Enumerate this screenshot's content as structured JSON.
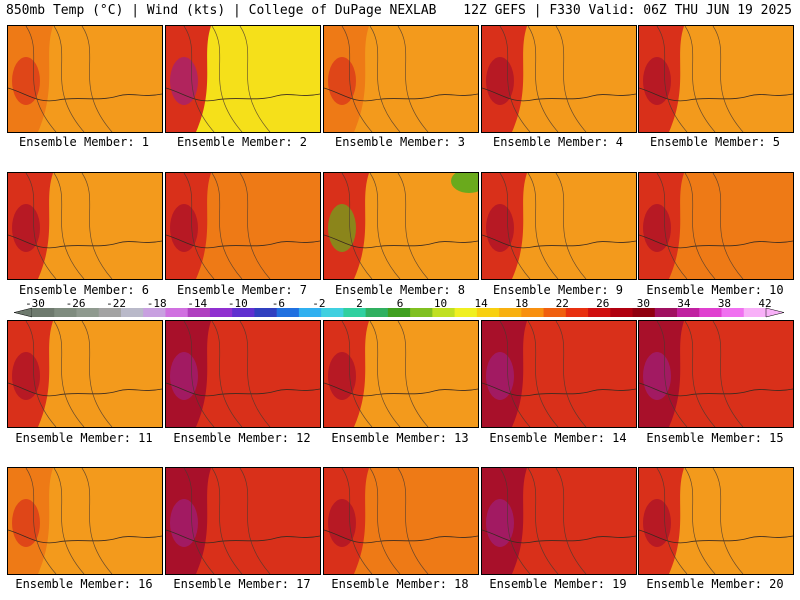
{
  "header": {
    "left": "850mb Temp (°C) | Wind (kts) | College of DuPage NEXLAB",
    "right": "12Z GEFS | F330 Valid: 06Z THU JUN 19 2025"
  },
  "members": [
    {
      "label": "Ensemble Member: 1",
      "palette": "mild"
    },
    {
      "label": "Ensemble Member: 2",
      "palette": "hot-west-yellow-east"
    },
    {
      "label": "Ensemble Member: 3",
      "palette": "mild"
    },
    {
      "label": "Ensemble Member: 4",
      "palette": "hot-west"
    },
    {
      "label": "Ensemble Member: 5",
      "palette": "hot-west"
    },
    {
      "label": "Ensemble Member: 6",
      "palette": "hot-west"
    },
    {
      "label": "Ensemble Member: 7",
      "palette": "warm"
    },
    {
      "label": "Ensemble Member: 8",
      "palette": "green-northeast"
    },
    {
      "label": "Ensemble Member: 9",
      "palette": "hot-west"
    },
    {
      "label": "Ensemble Member: 10",
      "palette": "warm"
    },
    {
      "label": "Ensemble Member: 11",
      "palette": "hot-west"
    },
    {
      "label": "Ensemble Member: 12",
      "palette": "hot"
    },
    {
      "label": "Ensemble Member: 13",
      "palette": "hot-west"
    },
    {
      "label": "Ensemble Member: 14",
      "palette": "hot"
    },
    {
      "label": "Ensemble Member: 15",
      "palette": "hot"
    },
    {
      "label": "Ensemble Member: 16",
      "palette": "mild"
    },
    {
      "label": "Ensemble Member: 17",
      "palette": "hot"
    },
    {
      "label": "Ensemble Member: 18",
      "palette": "warm"
    },
    {
      "label": "Ensemble Member: 19",
      "palette": "hot"
    },
    {
      "label": "Ensemble Member: 20",
      "palette": "hot-west"
    }
  ],
  "colorbar": {
    "labels": [
      "-30",
      "-26",
      "-22",
      "-18",
      "-14",
      "-10",
      "-6",
      "-2",
      "2",
      "6",
      "10",
      "14",
      "18",
      "22",
      "26",
      "30",
      "34",
      "38",
      "42"
    ],
    "colors": [
      "#6e7a6e",
      "#7f8c7f",
      "#8f9a8f",
      "#a3a3a3",
      "#b9b9c9",
      "#c8a0e0",
      "#d070e0",
      "#b040c0",
      "#9030d0",
      "#6030d0",
      "#3040c0",
      "#2070e0",
      "#30b0f0",
      "#40d0e0",
      "#30d0a0",
      "#30b060",
      "#40a020",
      "#80c020",
      "#c0e020",
      "#f0f020",
      "#f8d010",
      "#f8b010",
      "#f89010",
      "#f06010",
      "#e83010",
      "#d01010",
      "#b00010",
      "#900010",
      "#a01060",
      "#c020a0",
      "#e040d0",
      "#f070f0",
      "#f8b0f8"
    ],
    "color_mild": "#f39a1c",
    "color_warm": "#ee7a16",
    "color_hot": "#d9301a",
    "color_veryhot": "#a8102a",
    "color_extreme": "#a0207a",
    "color_yellow": "#f5e01a",
    "color_green": "#6aaa1c"
  }
}
